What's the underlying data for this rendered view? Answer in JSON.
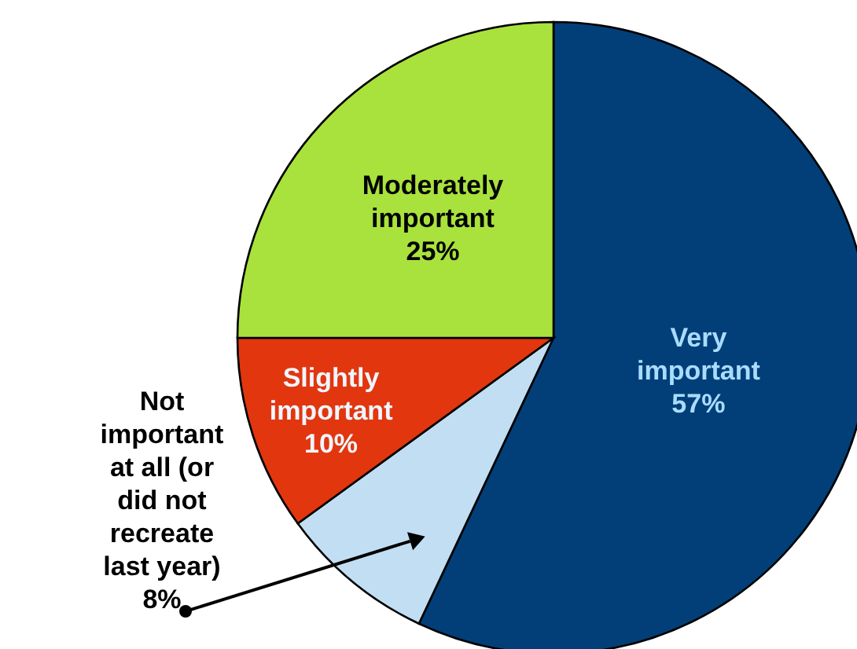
{
  "chart_data": {
    "type": "pie",
    "categories": [
      "Very important",
      "Not important at all (or did not recreate last year)",
      "Slightly important",
      "Moderately important"
    ],
    "values": [
      57,
      8,
      10,
      25
    ],
    "colors": [
      "#023f78",
      "#c2def2",
      "#e2360f",
      "#a9e23c"
    ],
    "value_labels": [
      "57%",
      "8%",
      "10%",
      "25%"
    ]
  }
}
